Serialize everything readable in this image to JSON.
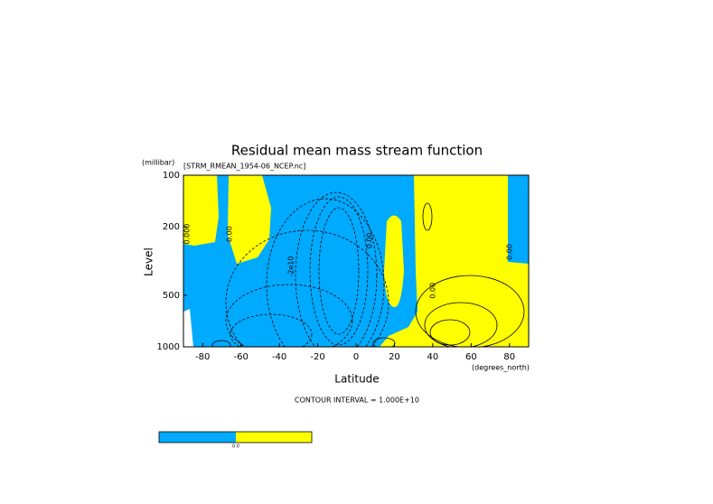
{
  "chart_data": {
    "type": "contour",
    "title": "Residual mean mass stream function",
    "subtitle": "[STRM_RMEAN_1954-06_NCEP.nc]",
    "y_unit": "(millibar)",
    "ylabel": "Level",
    "xlabel": "Latitude",
    "x_unit": "(degrees_north)",
    "xlim": [
      -90,
      90
    ],
    "xticks": [
      -80,
      -60,
      -40,
      -20,
      0,
      20,
      40,
      60,
      80
    ],
    "ylim": [
      1000,
      100
    ],
    "yticks": [
      100,
      200,
      500,
      1000
    ],
    "ylog": true,
    "footnote": "CONTOUR INTERVAL = 1.000E+10",
    "colors": [
      "#00aaff",
      "#ffff00"
    ],
    "contour_labels": [
      {
        "lat": -88,
        "level": 220,
        "label": "0.000"
      },
      {
        "lat": -66,
        "level": 220,
        "label": "0.00"
      },
      {
        "lat": -34,
        "level": 340,
        "label": "-2e10"
      },
      {
        "lat": 7,
        "level": 240,
        "label": "0.00"
      },
      {
        "lat": 40,
        "level": 470,
        "label": "0.00"
      },
      {
        "lat": 80,
        "level": 280,
        "label": "0.00"
      }
    ],
    "colorbar_label": "0.0"
  }
}
